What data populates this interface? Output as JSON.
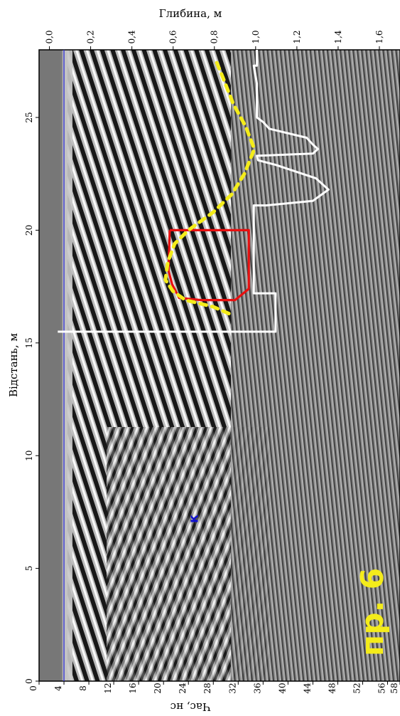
{
  "chart_data": {
    "type": "radargram",
    "orientation": "rotated-90",
    "profile_label": "пр. 6",
    "axes": {
      "distance": {
        "title": "Відстань, м",
        "range": [
          0,
          28
        ],
        "ticks": [
          "0",
          "5",
          "10",
          "15",
          "20",
          "25"
        ],
        "tick_values": [
          0,
          5,
          10,
          15,
          20,
          25
        ]
      },
      "depth": {
        "title": "Глибина, м",
        "range": [
          -0.05,
          1.7
        ],
        "ticks": [
          "0,0",
          "0,2",
          "0,4",
          "0,6",
          "0,8",
          "1,0",
          "1,2",
          "1,4",
          "1,6"
        ],
        "tick_values": [
          0.0,
          0.2,
          0.4,
          0.6,
          0.8,
          1.0,
          1.2,
          1.4,
          1.6
        ]
      },
      "time": {
        "title": "Час, нс",
        "range": [
          0,
          58
        ],
        "ticks": [
          "0",
          "4",
          "8",
          "12",
          "16",
          "20",
          "24",
          "28",
          "32",
          "36",
          "40",
          "44",
          "48",
          "52",
          "56",
          "58"
        ],
        "tick_values": [
          0,
          4,
          8,
          12,
          16,
          20,
          24,
          28,
          32,
          36,
          40,
          44,
          48,
          52,
          56,
          58
        ]
      }
    },
    "surface_line_time_ns": 4,
    "marker": {
      "label": "к",
      "distance_m": 7.2,
      "time_ns": 25.5,
      "color": "#1010d0"
    },
    "red_outline": {
      "color": "#e81010",
      "points": [
        [
          20,
          21.0
        ],
        [
          18.2,
          20.8
        ],
        [
          17.6,
          21.4
        ],
        [
          17.0,
          22.5
        ],
        [
          16.9,
          26.0
        ],
        [
          16.9,
          31.5
        ],
        [
          17.4,
          33.7
        ],
        [
          20.0,
          33.7
        ],
        [
          20,
          21.0
        ]
      ]
    },
    "yellow_dashed_curve": {
      "color": "#f4ec1a",
      "points": [
        [
          16.3,
          30.5
        ],
        [
          16.6,
          28.0
        ],
        [
          16.9,
          23.5
        ],
        [
          17.3,
          21.5
        ],
        [
          17.8,
          20.3
        ],
        [
          18.6,
          20.7
        ],
        [
          19.4,
          21.8
        ],
        [
          20.0,
          24.0
        ],
        [
          20.8,
          28.0
        ],
        [
          21.6,
          31.0
        ],
        [
          22.5,
          33.0
        ],
        [
          23.6,
          34.6
        ],
        [
          24.6,
          33.2
        ],
        [
          25.6,
          31.2
        ],
        [
          26.8,
          29.5
        ],
        [
          27.6,
          28.3
        ]
      ]
    },
    "white_trace": {
      "color": "#ffffff",
      "points": [
        [
          15.5,
          3.0
        ],
        [
          15.5,
          38.0
        ],
        [
          17.2,
          38.0
        ],
        [
          17.2,
          34.5
        ],
        [
          21.1,
          34.5
        ],
        [
          21.1,
          36.5
        ],
        [
          21.3,
          44.0
        ],
        [
          21.8,
          46.5
        ],
        [
          22.3,
          44.5
        ],
        [
          22.9,
          38.0
        ],
        [
          23.1,
          35.2
        ],
        [
          23.3,
          35.0
        ],
        [
          23.4,
          44.0
        ],
        [
          23.6,
          44.8
        ],
        [
          23.8,
          44.0
        ],
        [
          24.1,
          43.0
        ],
        [
          24.5,
          37.0
        ],
        [
          24.8,
          36.0
        ],
        [
          25.0,
          35.0
        ],
        [
          26.5,
          35.0
        ],
        [
          27.3,
          34.5
        ],
        [
          27.3,
          35.0
        ],
        [
          28.0,
          35.0
        ]
      ]
    }
  }
}
